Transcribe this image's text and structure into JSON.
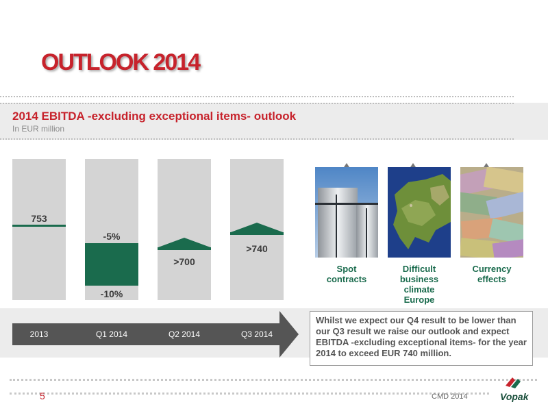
{
  "slide": {
    "title": "OUTLOOK 2014",
    "subtitle": "2014 EBITDA -excluding exceptional items- outlook",
    "unit": "In EUR million"
  },
  "chart_data": {
    "type": "bar",
    "categories": [
      "2013",
      "Q1 2014",
      "Q2 2014",
      "Q3 2014"
    ],
    "labels": {
      "y2013": "753",
      "q1_top": "-5%",
      "q1_bottom": "-10%",
      "q2": ">700",
      "q3": ">740"
    }
  },
  "factors": [
    {
      "label_lines": [
        "Spot",
        "contracts"
      ],
      "image": "storage-tanks-photo"
    },
    {
      "label_lines": [
        "Difficult",
        "business",
        "climate",
        "Europe"
      ],
      "image": "europe-map-photo"
    },
    {
      "label_lines": [
        "Currency",
        "effects"
      ],
      "image": "banknotes-photo"
    }
  ],
  "callout": {
    "text": "Whilst we expect our Q4 result to be lower than our Q3 result we raise our outlook and expect EBITDA -excluding exceptional items- for the year 2014 to exceed EUR 740 million."
  },
  "footer": {
    "page_number": "5",
    "event": "CMD 2014",
    "logo_text": "Vopak"
  },
  "colors": {
    "accent_red": "#c7232c",
    "vopak_green": "#1a6b4d",
    "column_grey": "#d4d4d4"
  }
}
